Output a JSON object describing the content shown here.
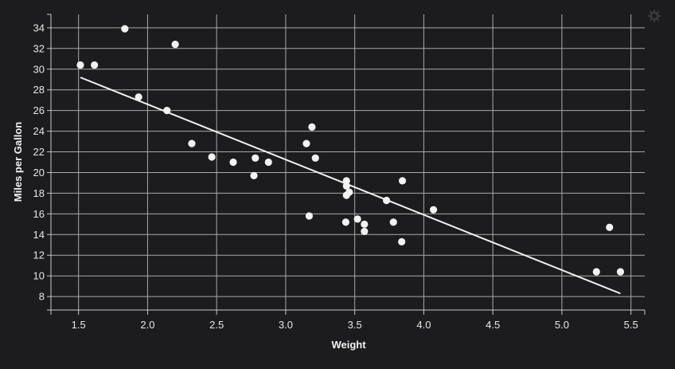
{
  "chart_data": {
    "type": "scatter",
    "xlabel": "Weight",
    "ylabel": "Miles per Gallon",
    "xlim": [
      1.3,
      5.6
    ],
    "ylim": [
      6.7,
      35.3
    ],
    "x_ticks": [
      "1.5",
      "2.0",
      "2.5",
      "3.0",
      "3.5",
      "4.0",
      "4.5",
      "5.0",
      "5.5"
    ],
    "y_ticks": [
      "8",
      "10",
      "12",
      "14",
      "16",
      "18",
      "20",
      "22",
      "24",
      "26",
      "28",
      "30",
      "32",
      "34"
    ],
    "grid": true,
    "points": [
      {
        "x": 1.513,
        "y": 30.4
      },
      {
        "x": 1.615,
        "y": 30.4
      },
      {
        "x": 1.835,
        "y": 33.9
      },
      {
        "x": 1.935,
        "y": 27.3
      },
      {
        "x": 2.14,
        "y": 26.0
      },
      {
        "x": 2.2,
        "y": 32.4
      },
      {
        "x": 2.32,
        "y": 22.8
      },
      {
        "x": 2.465,
        "y": 21.5
      },
      {
        "x": 2.62,
        "y": 21.0
      },
      {
        "x": 2.77,
        "y": 19.7
      },
      {
        "x": 2.78,
        "y": 21.4
      },
      {
        "x": 2.875,
        "y": 21.0
      },
      {
        "x": 3.15,
        "y": 22.8
      },
      {
        "x": 3.17,
        "y": 15.8
      },
      {
        "x": 3.19,
        "y": 24.4
      },
      {
        "x": 3.215,
        "y": 21.4
      },
      {
        "x": 3.435,
        "y": 15.2
      },
      {
        "x": 3.44,
        "y": 19.2
      },
      {
        "x": 3.44,
        "y": 18.7
      },
      {
        "x": 3.44,
        "y": 17.8
      },
      {
        "x": 3.46,
        "y": 18.1
      },
      {
        "x": 3.52,
        "y": 15.5
      },
      {
        "x": 3.57,
        "y": 15.0
      },
      {
        "x": 3.57,
        "y": 14.3
      },
      {
        "x": 3.73,
        "y": 17.3
      },
      {
        "x": 3.78,
        "y": 15.2
      },
      {
        "x": 3.84,
        "y": 13.3
      },
      {
        "x": 3.845,
        "y": 19.2
      },
      {
        "x": 4.07,
        "y": 16.4
      },
      {
        "x": 5.25,
        "y": 10.4
      },
      {
        "x": 5.345,
        "y": 14.7
      },
      {
        "x": 5.424,
        "y": 10.4
      }
    ],
    "trendline": {
      "x": [
        1.513,
        5.424
      ],
      "y": [
        29.2,
        8.3
      ]
    },
    "colors": {
      "background": "#1c1c1e",
      "grid": "#a9a9a9",
      "axis": "#c8c8c8",
      "point": "#f2f2f2",
      "trendline": "#f2f2f2",
      "text": "#e8e8e8"
    }
  },
  "toolbar": {
    "settings_icon": "gear-icon"
  }
}
